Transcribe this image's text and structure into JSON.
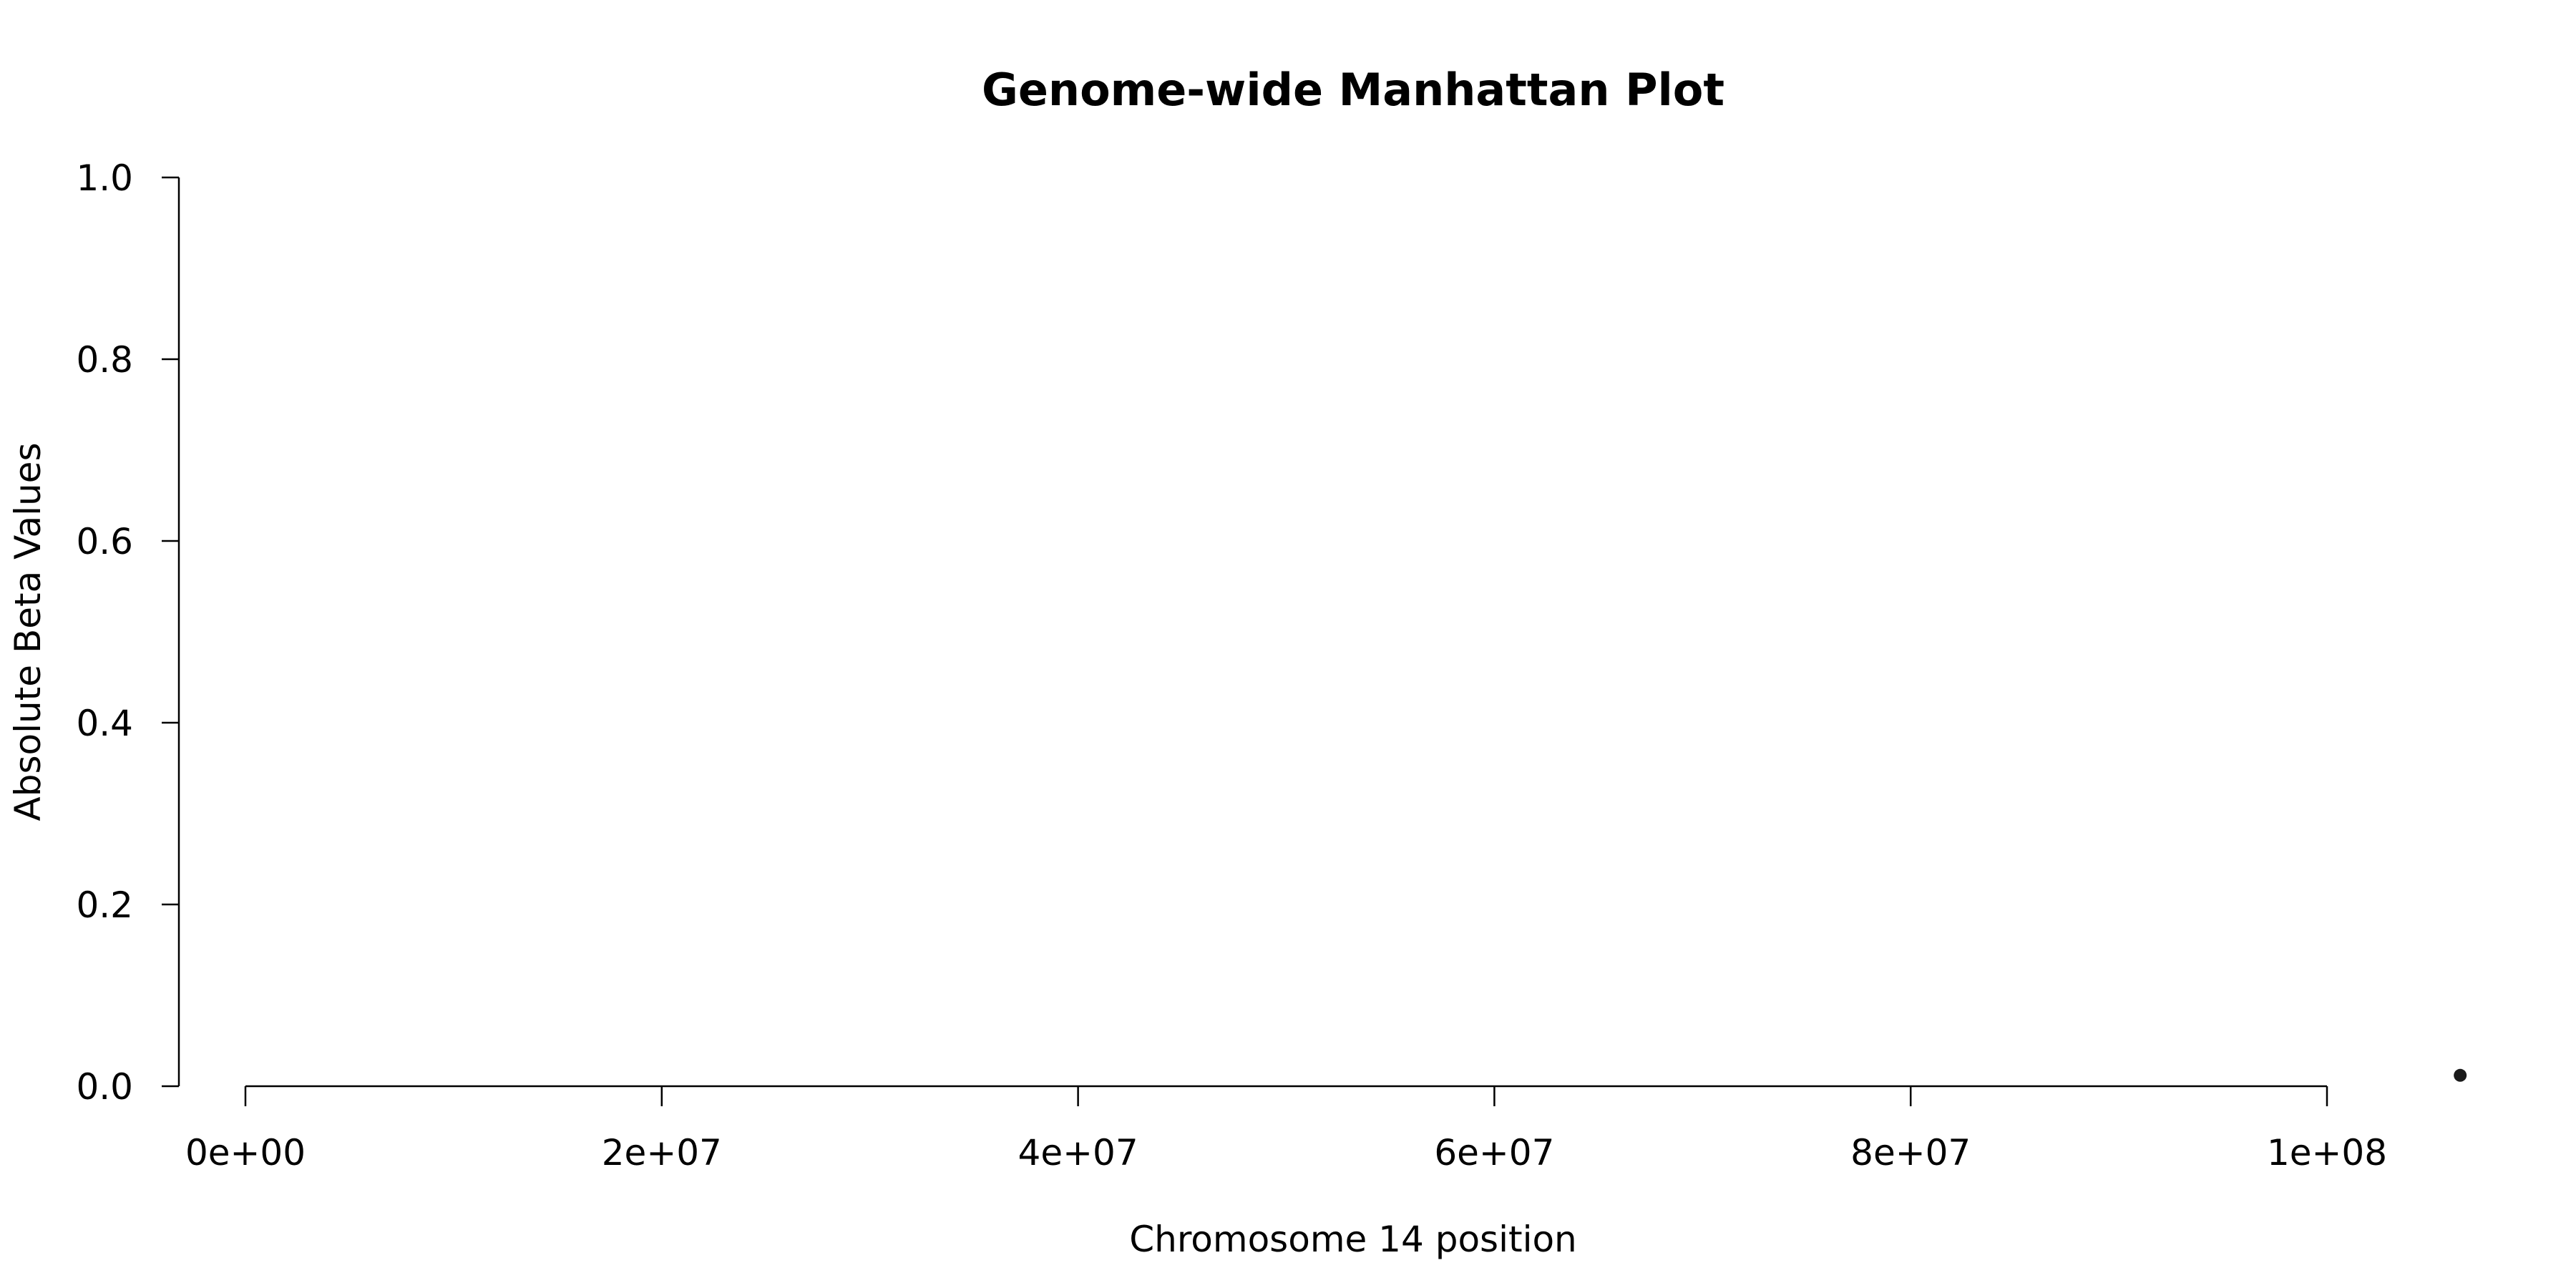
{
  "chart_data": {
    "type": "scatter",
    "title": "Genome-wide Manhattan Plot",
    "xlabel": "Chromosome 14 position",
    "ylabel": "Absolute Beta Values",
    "xlim": [
      0,
      100000000
    ],
    "ylim": [
      0,
      1
    ],
    "x_ticks": [
      0,
      20000000,
      40000000,
      60000000,
      80000000,
      100000000
    ],
    "x_tick_labels": [
      "0e+00",
      "2e+07",
      "4e+07",
      "6e+07",
      "8e+07",
      "1e+08"
    ],
    "y_ticks": [
      0,
      0.2,
      0.4,
      0.6,
      0.8,
      1.0
    ],
    "y_tick_labels": [
      "0.0",
      "0.2",
      "0.4",
      "0.6",
      "0.8",
      "1.0"
    ],
    "grid": false,
    "series": [
      {
        "points": [
          {
            "x": 106400000,
            "y": 0.012
          }
        ],
        "color": "#1a1a1a"
      }
    ]
  }
}
